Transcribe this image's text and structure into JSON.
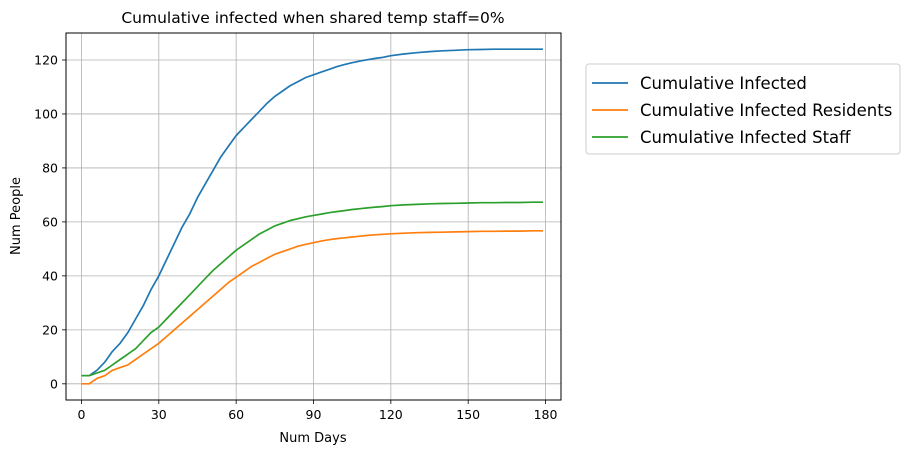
{
  "chart_data": {
    "type": "line",
    "title": "Cumulative infected when shared temp staff=0%",
    "xlabel": "Num Days",
    "ylabel": "Num People",
    "xlim": [
      -6,
      186
    ],
    "ylim": [
      -6,
      130
    ],
    "xticks": [
      0,
      30,
      60,
      90,
      120,
      150,
      180
    ],
    "yticks": [
      0,
      20,
      40,
      60,
      80,
      100,
      120
    ],
    "grid": true,
    "legend_position": "outside-right-top",
    "x": [
      0,
      3,
      6,
      9,
      12,
      15,
      18,
      21,
      24,
      27,
      30,
      33,
      36,
      39,
      42,
      45,
      48,
      51,
      54,
      57,
      60,
      63,
      66,
      69,
      72,
      75,
      78,
      81,
      84,
      87,
      90,
      93,
      96,
      99,
      102,
      105,
      108,
      111,
      114,
      117,
      120,
      125,
      130,
      135,
      140,
      145,
      150,
      155,
      160,
      165,
      170,
      175,
      179
    ],
    "series": [
      {
        "name": "Cumulative Infected",
        "color": "#1f77b4",
        "values": [
          3,
          3,
          5,
          8,
          12,
          15,
          19,
          24,
          29,
          35,
          40,
          46,
          52,
          58,
          63,
          69,
          74,
          79,
          84,
          88,
          92,
          95,
          98,
          101,
          104,
          106.5,
          108.5,
          110.5,
          112,
          113.5,
          114.5,
          115.5,
          116.5,
          117.5,
          118.3,
          119,
          119.6,
          120.1,
          120.6,
          121,
          121.6,
          122.2,
          122.7,
          123.1,
          123.4,
          123.6,
          123.8,
          123.9,
          124,
          124,
          124,
          124,
          124
        ]
      },
      {
        "name": "Cumulative Infected Residents",
        "color": "#ff7f0e",
        "values": [
          0,
          0,
          2,
          3,
          5,
          6,
          7,
          9,
          11,
          13,
          15,
          17.5,
          20,
          22.5,
          25,
          27.5,
          30,
          32.5,
          35,
          37.5,
          39.5,
          41.5,
          43.5,
          45,
          46.5,
          48,
          49,
          50,
          51,
          51.7,
          52.3,
          52.9,
          53.4,
          53.8,
          54.1,
          54.4,
          54.7,
          55,
          55.2,
          55.4,
          55.6,
          55.8,
          56,
          56.1,
          56.2,
          56.3,
          56.4,
          56.5,
          56.5,
          56.6,
          56.6,
          56.7,
          56.7
        ]
      },
      {
        "name": "Cumulative Infected Staff",
        "color": "#2ca02c",
        "values": [
          3,
          3,
          4,
          5,
          7,
          9,
          11,
          13,
          16,
          19,
          21,
          24,
          27,
          30,
          33,
          36,
          39,
          42,
          44.5,
          47,
          49.5,
          51.5,
          53.5,
          55.5,
          57,
          58.5,
          59.5,
          60.5,
          61.2,
          61.9,
          62.4,
          62.9,
          63.4,
          63.8,
          64.2,
          64.6,
          64.9,
          65.2,
          65.5,
          65.7,
          66,
          66.3,
          66.5,
          66.7,
          66.8,
          66.9,
          67,
          67.1,
          67.1,
          67.2,
          67.2,
          67.3,
          67.3
        ]
      }
    ]
  }
}
